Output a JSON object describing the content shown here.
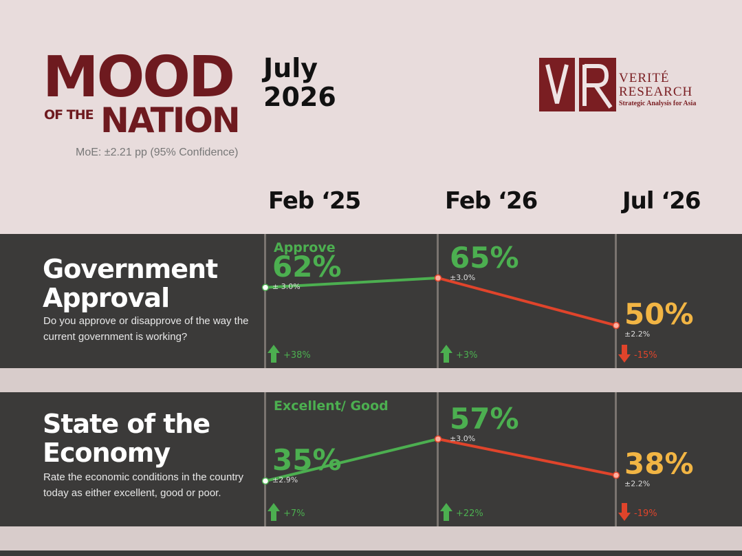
{
  "header": {
    "brand_line1": "MOOD",
    "brand_of_the": "OF THE",
    "brand_line2": "NATION",
    "moe": "MoE: ±2.21 pp (95% Confidence)",
    "date_line1": "July",
    "date_line2": "2026",
    "org_letters": "VR",
    "org_name1": "Verité",
    "org_name2": "Research",
    "org_tagline": "Strategic Analysis for Asia",
    "brand_color": "#6e1a1f"
  },
  "columns": [
    "Feb ‘25",
    "Feb ‘26",
    "Jul ‘26"
  ],
  "colors": {
    "up": "#4caf50",
    "down": "#e0442b",
    "latest": "#f2b544",
    "panel_bg": "#3b3a39"
  },
  "chart_data": [
    {
      "type": "line",
      "title": "Government Approval",
      "question": "Do you approve or disapprove of the way the current government is working?",
      "series_label": "Approve",
      "x": [
        "Feb ‘25",
        "Feb ‘26",
        "Jul ‘26"
      ],
      "values": [
        62,
        65,
        50
      ],
      "value_labels": [
        "62%",
        "65%",
        "50%"
      ],
      "moe_labels": [
        "± 3.0%",
        "±3.0%",
        "±2.2%"
      ],
      "changes": [
        {
          "direction": "up",
          "label": "+38%"
        },
        {
          "direction": "up",
          "label": "+3%"
        },
        {
          "direction": "down",
          "label": "-15%"
        }
      ]
    },
    {
      "type": "line",
      "title": "State of the Economy",
      "question": "Rate the economic conditions in the country today as either excellent, good or poor.",
      "series_label": "Excellent/ Good",
      "x": [
        "Feb ‘25",
        "Feb ‘26",
        "Jul ‘26"
      ],
      "values": [
        35,
        57,
        38
      ],
      "value_labels": [
        "35%",
        "57%",
        "38%"
      ],
      "moe_labels": [
        "±2.9%",
        "±3.0%",
        "±2.2%"
      ],
      "changes": [
        {
          "direction": "up",
          "label": "+7%"
        },
        {
          "direction": "up",
          "label": "+22%"
        },
        {
          "direction": "down",
          "label": "-19%"
        }
      ]
    }
  ]
}
